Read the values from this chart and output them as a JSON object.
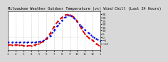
{
  "title": "Milwaukee Weather Outdoor Temperature (vs) Wind Chill (Last 24 Hours)",
  "title_fontsize": 3.8,
  "bg_color": "#d8d8d8",
  "plot_bg_color": "#ffffff",
  "grid_color": "#aaaaaa",
  "x_labels": [
    "1",
    "",
    "2",
    "",
    "3",
    "",
    "4",
    "",
    "5",
    "",
    "6",
    "",
    "7",
    "",
    "8",
    "",
    "9",
    "",
    "10",
    "",
    "11",
    "",
    "12",
    "",
    "1"
  ],
  "temp_data": [
    -8,
    -8,
    -8,
    -8,
    -8,
    -8,
    -8,
    -8,
    -7,
    -6,
    -3,
    2,
    10,
    18,
    25,
    31,
    33,
    30,
    24,
    17,
    11,
    6,
    1,
    -3,
    -6
  ],
  "windchill_data": [
    -12,
    -12,
    -12,
    -12,
    -13,
    -13,
    -13,
    -12,
    -10,
    -7,
    -2,
    6,
    16,
    24,
    30,
    34,
    34,
    31,
    24,
    14,
    5,
    -1,
    -5,
    -10,
    -14
  ],
  "temp_color": "#0000dd",
  "windchill_color": "#dd0000",
  "temp_linewidth": 1.5,
  "windchill_linewidth": 1.3,
  "ylim": [
    -20,
    40
  ],
  "yticks": [
    -10,
    -5,
    0,
    5,
    10,
    15,
    20,
    25,
    30,
    35
  ],
  "ytick_fontsize": 3.2,
  "xtick_fontsize": 2.8,
  "vline_color": "#999999",
  "vline_style": ":",
  "vline_positions": [
    0,
    2,
    4,
    6,
    8,
    10,
    12,
    14,
    16,
    18,
    20,
    22,
    24
  ]
}
